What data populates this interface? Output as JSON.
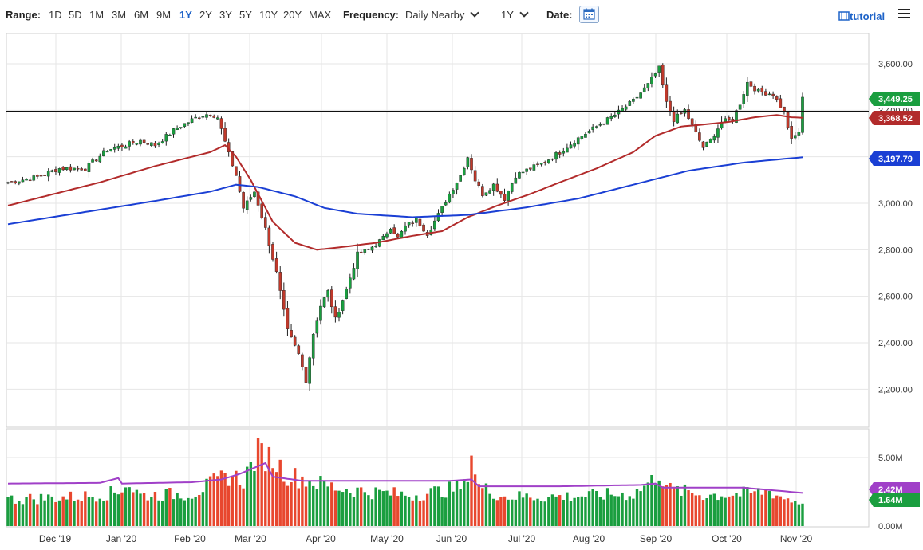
{
  "toolbar": {
    "range_label": "Range:",
    "ranges": [
      "1D",
      "5D",
      "1M",
      "3M",
      "6M",
      "9M",
      "1Y",
      "2Y",
      "3Y",
      "5Y",
      "10Y",
      "20Y",
      "MAX"
    ],
    "active_range": "1Y",
    "frequency_label": "Frequency:",
    "frequency_value": "Daily Nearby",
    "period_value": "1Y",
    "date_label": "Date:",
    "tutorial_label": "tutorial"
  },
  "chart_data": [
    {
      "type": "candlestick",
      "title": "",
      "x": [
        "Dec '19",
        "Jan '20",
        "Feb '20",
        "Mar '20",
        "Apr '20",
        "May '20",
        "Jun '20",
        "Jul '20",
        "Aug '20",
        "Sep '20",
        "Oct '20",
        "Nov '20"
      ],
      "ylim": [
        2100,
        3650
      ],
      "yticks": [
        "2,200.00",
        "2,400.00",
        "2,600.00",
        "2,800.00",
        "3,000.00",
        "3,200.00",
        "3,400.00",
        "3,600.00"
      ],
      "grid": true,
      "horizontal_line": 3395,
      "price_anchors": [
        [
          0,
          3090
        ],
        [
          8,
          3113
        ],
        [
          14,
          3150
        ],
        [
          21,
          3150
        ],
        [
          27,
          3230
        ],
        [
          33,
          3255
        ],
        [
          36,
          3270
        ],
        [
          40,
          3250
        ],
        [
          46,
          3325
        ],
        [
          52,
          3375
        ],
        [
          55,
          3387
        ],
        [
          57,
          3370
        ],
        [
          60,
          3210
        ],
        [
          62,
          3120
        ],
        [
          64,
          2980
        ],
        [
          67,
          3050
        ],
        [
          70,
          2890
        ],
        [
          73,
          2700
        ],
        [
          76,
          2450
        ],
        [
          79,
          2350
        ],
        [
          81,
          2240
        ],
        [
          83,
          2440
        ],
        [
          85,
          2560
        ],
        [
          87,
          2620
        ],
        [
          89,
          2500
        ],
        [
          92,
          2630
        ],
        [
          95,
          2780
        ],
        [
          98,
          2800
        ],
        [
          102,
          2850
        ],
        [
          104,
          2900
        ],
        [
          106,
          2850
        ],
        [
          108,
          2900
        ],
        [
          111,
          2930
        ],
        [
          114,
          2870
        ],
        [
          117,
          2950
        ],
        [
          120,
          3040
        ],
        [
          123,
          3120
        ],
        [
          125,
          3200
        ],
        [
          127,
          3100
        ],
        [
          129,
          3040
        ],
        [
          132,
          3080
        ],
        [
          135,
          3020
        ],
        [
          138,
          3120
        ],
        [
          142,
          3150
        ],
        [
          145,
          3170
        ],
        [
          150,
          3220
        ],
        [
          155,
          3280
        ],
        [
          160,
          3330
        ],
        [
          165,
          3380
        ],
        [
          170,
          3440
        ],
        [
          174,
          3510
        ],
        [
          177,
          3580
        ],
        [
          179,
          3430
        ],
        [
          181,
          3360
        ],
        [
          184,
          3400
        ],
        [
          187,
          3300
        ],
        [
          189,
          3240
        ],
        [
          191,
          3270
        ],
        [
          194,
          3350
        ],
        [
          197,
          3360
        ],
        [
          199,
          3430
        ],
        [
          201,
          3520
        ],
        [
          204,
          3480
        ],
        [
          208,
          3470
        ],
        [
          211,
          3390
        ],
        [
          213,
          3270
        ],
        [
          215,
          3310
        ],
        [
          216,
          3449
        ]
      ],
      "series": [
        {
          "name": "",
          "last_value": "3,449.25",
          "color": "#1a9e3f"
        },
        {
          "name": "",
          "last_value": "3,368.52",
          "color": "#b22b2b",
          "ma_anchors": [
            [
              0,
              2990
            ],
            [
              25,
              3090
            ],
            [
              40,
              3160
            ],
            [
              55,
              3220
            ],
            [
              59,
              3250
            ],
            [
              62,
              3200
            ],
            [
              66,
              3100
            ],
            [
              72,
              2920
            ],
            [
              78,
              2830
            ],
            [
              84,
              2800
            ],
            [
              90,
              2810
            ],
            [
              100,
              2830
            ],
            [
              110,
              2860
            ],
            [
              118,
              2880
            ],
            [
              125,
              2940
            ],
            [
              133,
              2990
            ],
            [
              142,
              3040
            ],
            [
              150,
              3090
            ],
            [
              160,
              3150
            ],
            [
              170,
              3220
            ],
            [
              176,
              3290
            ],
            [
              183,
              3330
            ],
            [
              190,
              3340
            ],
            [
              196,
              3350
            ],
            [
              203,
              3370
            ],
            [
              209,
              3380
            ],
            [
              213,
              3370
            ],
            [
              216,
              3368
            ]
          ]
        },
        {
          "name": "",
          "last_value": "3,197.79",
          "color": "#1a3fd4",
          "ma_anchors": [
            [
              0,
              2910
            ],
            [
              20,
              2960
            ],
            [
              40,
              3010
            ],
            [
              55,
              3050
            ],
            [
              62,
              3080
            ],
            [
              68,
              3070
            ],
            [
              78,
              3030
            ],
            [
              86,
              2980
            ],
            [
              95,
              2955
            ],
            [
              110,
              2940
            ],
            [
              125,
              2950
            ],
            [
              140,
              2980
            ],
            [
              155,
              3020
            ],
            [
              170,
              3080
            ],
            [
              185,
              3140
            ],
            [
              200,
              3175
            ],
            [
              216,
              3198
            ]
          ]
        }
      ]
    },
    {
      "type": "bar",
      "ylim": [
        0,
        6500000
      ],
      "yticks": [
        "0.00M",
        "5.00M"
      ],
      "series": [
        {
          "name": "",
          "last_value": "2.42M",
          "color": "#a040c8"
        },
        {
          "name": "",
          "last_value": "1.64M",
          "color": "#1a9e3f"
        }
      ],
      "volume_profile": [
        [
          0,
          1.9
        ],
        [
          20,
          2.1
        ],
        [
          30,
          2.4
        ],
        [
          32,
          3.1
        ],
        [
          36,
          2.2
        ],
        [
          50,
          2.3
        ],
        [
          60,
          3.6
        ],
        [
          64,
          3.3
        ],
        [
          68,
          5.2
        ],
        [
          72,
          4.8
        ],
        [
          76,
          3.6
        ],
        [
          80,
          3.4
        ],
        [
          85,
          3.0
        ],
        [
          90,
          2.7
        ],
        [
          100,
          2.4
        ],
        [
          110,
          2.2
        ],
        [
          120,
          2.6
        ],
        [
          124,
          2.8
        ],
        [
          126,
          5.2
        ],
        [
          128,
          2.8
        ],
        [
          135,
          2.1
        ],
        [
          150,
          2.1
        ],
        [
          170,
          2.3
        ],
        [
          175,
          3.2
        ],
        [
          177,
          3.8
        ],
        [
          180,
          2.6
        ],
        [
          190,
          2.2
        ],
        [
          200,
          2.3
        ],
        [
          207,
          2.5
        ],
        [
          210,
          2.1
        ],
        [
          216,
          1.64
        ]
      ],
      "average_anchors": [
        [
          0,
          3.1
        ],
        [
          25,
          3.15
        ],
        [
          30,
          3.5
        ],
        [
          31,
          3.1
        ],
        [
          50,
          3.2
        ],
        [
          58,
          3.4
        ],
        [
          63,
          3.8
        ],
        [
          70,
          4.6
        ],
        [
          72,
          3.6
        ],
        [
          80,
          3.3
        ],
        [
          100,
          3.3
        ],
        [
          120,
          3.3
        ],
        [
          126,
          3.4
        ],
        [
          128,
          2.9
        ],
        [
          150,
          2.9
        ],
        [
          172,
          3.0
        ],
        [
          176,
          3.1
        ],
        [
          178,
          2.8
        ],
        [
          200,
          2.8
        ],
        [
          216,
          2.42
        ]
      ]
    }
  ]
}
